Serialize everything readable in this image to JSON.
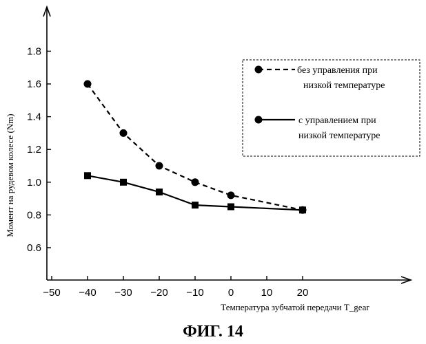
{
  "chart_data": {
    "type": "line",
    "xlabel": "Температура зубчатой передачи T_gear",
    "ylabel": "Момент на рудевом колесе (Nm)",
    "caption": "ФИГ. 14",
    "xlim": [
      -50,
      20
    ],
    "ylim": [
      0.45,
      1.95
    ],
    "xticks": [
      -50,
      -40,
      -30,
      -20,
      -10,
      0,
      10,
      20
    ],
    "yticks": [
      0.6,
      0.8,
      1.0,
      1.2,
      1.4,
      1.6,
      1.8
    ],
    "x_tick_labels": [
      "−50",
      "−40",
      "−30",
      "−20",
      "−10",
      "0",
      "10",
      "20"
    ],
    "y_tick_labels": [
      "0.6",
      "0.8",
      "1.0",
      "1.2",
      "1.4",
      "1.6",
      "1.8"
    ],
    "grid": false,
    "legend_position": "top-right",
    "series": [
      {
        "name_lines": [
          "без управления при",
          "низкой температуре"
        ],
        "line_style": "dashed",
        "marker": "circle",
        "x": [
          -40,
          -30,
          -20,
          -10,
          0,
          20
        ],
        "y": [
          1.6,
          1.3,
          1.1,
          1.0,
          0.92,
          0.83
        ]
      },
      {
        "name_lines": [
          "с управлением при",
          "низкой температуре"
        ],
        "line_style": "solid",
        "marker": "square",
        "x": [
          -40,
          -30,
          -20,
          -10,
          0,
          20
        ],
        "y": [
          1.04,
          1.0,
          0.94,
          0.86,
          0.85,
          0.83
        ]
      }
    ]
  }
}
